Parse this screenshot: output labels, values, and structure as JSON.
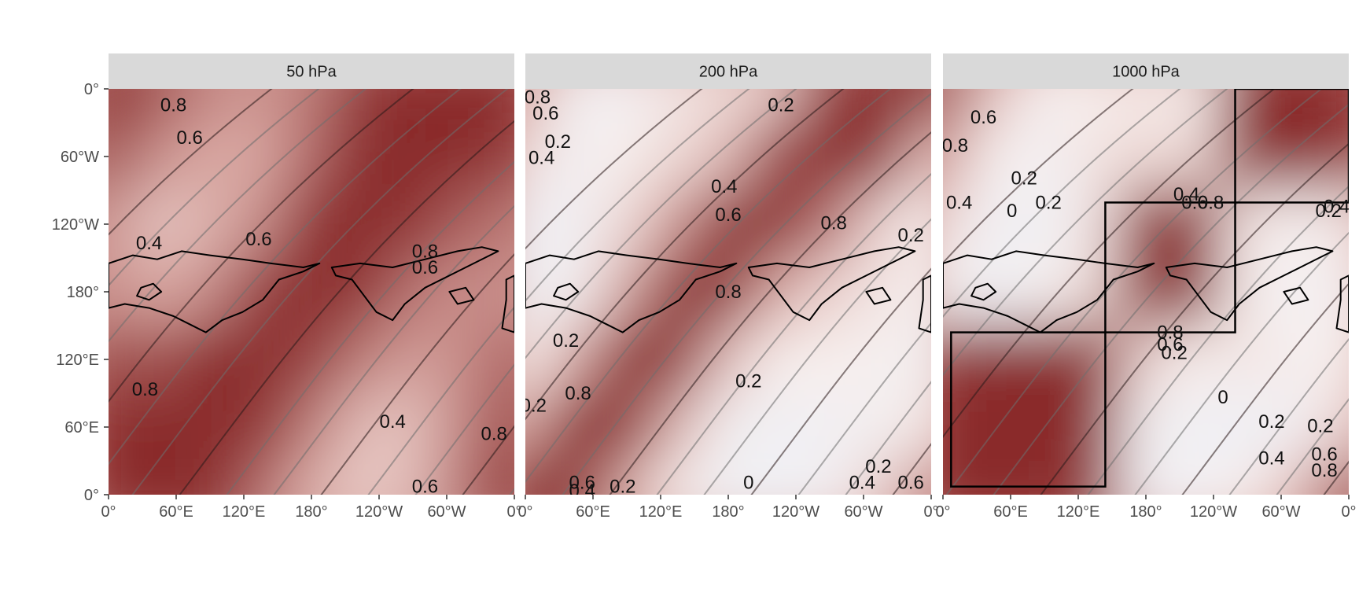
{
  "chart_data": {
    "type": "heatmap",
    "description_type": "filled-contour correlation maps",
    "facets": [
      {
        "label": "50 hPa",
        "contour_labels": [
          "0.8",
          "0.6",
          "0.4",
          "0.6",
          "0.8",
          "0.6",
          "0.8",
          "0.4",
          "0.6",
          "0.8"
        ],
        "cell_values": [
          [
            0.95,
            0.8,
            0.65,
            0.6,
            0.68,
            0.85,
            0.95,
            0.95,
            0.95
          ],
          [
            0.82,
            0.62,
            0.55,
            0.55,
            0.72,
            0.92,
            0.95,
            0.92,
            0.85
          ],
          [
            0.62,
            0.4,
            0.5,
            0.62,
            0.88,
            0.95,
            0.88,
            0.75,
            0.68
          ],
          [
            0.62,
            0.55,
            0.62,
            0.85,
            0.95,
            0.88,
            0.7,
            0.62,
            0.62
          ],
          [
            0.82,
            0.78,
            0.9,
            0.95,
            0.85,
            0.68,
            0.58,
            0.62,
            0.75
          ],
          [
            0.95,
            0.95,
            0.95,
            0.88,
            0.68,
            0.45,
            0.42,
            0.65,
            0.82
          ],
          [
            0.95,
            0.95,
            0.9,
            0.72,
            0.52,
            0.38,
            0.45,
            0.7,
            0.88
          ]
        ]
      },
      {
        "label": "200 hPa",
        "contour_labels": [
          "0.8",
          "0.6",
          "0.4",
          "0.2",
          "0.2",
          "0.4",
          "0.6",
          "0.8",
          "0.2",
          "0.2",
          "0.2",
          "0.8",
          "0.2",
          "0",
          "0.6",
          "0.4",
          "0.2",
          "0.2",
          "0.4",
          "0.6",
          "0.8"
        ],
        "cell_values": [
          [
            0.55,
            0.12,
            0.1,
            0.25,
            0.3,
            0.4,
            0.85,
            0.95,
            0.95
          ],
          [
            0.3,
            0.1,
            0.2,
            0.3,
            0.45,
            0.85,
            0.95,
            0.92,
            0.45
          ],
          [
            0.05,
            0.08,
            0.3,
            0.6,
            0.92,
            0.95,
            0.7,
            0.35,
            0.18
          ],
          [
            0.05,
            0.12,
            0.55,
            0.92,
            0.95,
            0.55,
            0.35,
            0.25,
            0.15
          ],
          [
            0.2,
            0.55,
            0.95,
            0.9,
            0.45,
            0.2,
            0.2,
            0.15,
            0.12
          ],
          [
            0.55,
            0.95,
            0.92,
            0.5,
            0.12,
            0.05,
            0.08,
            0.12,
            0.25
          ],
          [
            0.95,
            0.95,
            0.55,
            0.22,
            0.05,
            0.05,
            0.1,
            0.35,
            0.65
          ]
        ]
      },
      {
        "label": "1000 hPa",
        "contour_labels": [
          "0.8",
          "0.6",
          "0.2",
          "0.2",
          "0",
          "0.2",
          "0.4",
          "0.4",
          "0.6",
          "0.8",
          "0.4",
          "0.2",
          "0.8",
          "0.6",
          "0.2",
          "0",
          "0.2",
          "0.4",
          "0.6",
          "0.8"
        ],
        "cell_values": [
          [
            0.85,
            0.45,
            0.15,
            0.2,
            0.25,
            0.2,
            0.95,
            0.95,
            0.95
          ],
          [
            0.6,
            0.2,
            0.1,
            0.25,
            0.3,
            0.3,
            0.95,
            0.92,
            0.85
          ],
          [
            0.3,
            0.08,
            0.05,
            0.25,
            0.95,
            0.95,
            0.25,
            0.15,
            0.25
          ],
          [
            0.15,
            0.05,
            0.15,
            0.3,
            0.95,
            0.95,
            0.2,
            0.1,
            0.15
          ],
          [
            0.85,
            0.9,
            0.92,
            0.95,
            0.35,
            0.2,
            0.25,
            0.15,
            0.2
          ],
          [
            0.95,
            0.95,
            0.95,
            0.92,
            0.12,
            0.05,
            0.02,
            0.1,
            0.35
          ],
          [
            0.95,
            0.95,
            0.95,
            0.85,
            0.1,
            0.08,
            0.2,
            0.45,
            0.8
          ]
        ],
        "boxes": [
          {
            "lon": [
              0,
              145
            ],
            "lat": [
              " 0°",
              "140°E"
            ]
          },
          {
            "lon": [
              145,
              265
            ],
            "lat": [
              "130°W",
              "140°E"
            ]
          },
          {
            "lon": [
              265,
              360
            ],
            "lat": [
              "0°",
              "130°W"
            ]
          }
        ]
      }
    ],
    "x_ticks": [
      "0°",
      "60°E",
      "120°E",
      "180°",
      "120°W",
      "60°W",
      "0°"
    ],
    "y_ticks": [
      "0°",
      "60°W",
      "120°W",
      "180°",
      "120°E",
      "60°E",
      "0°"
    ],
    "fill_range": [
      0,
      1
    ],
    "colors": {
      "low": "#eef0f7",
      "mid_low": "#f7eeec",
      "mid": "#d9a8a3",
      "high": "#8a2b2b",
      "contour_light": "#6e6e6e",
      "contour_dark": "#2a1a1a",
      "strip_bg": "#d9d9d9",
      "coast": "#000000"
    }
  }
}
